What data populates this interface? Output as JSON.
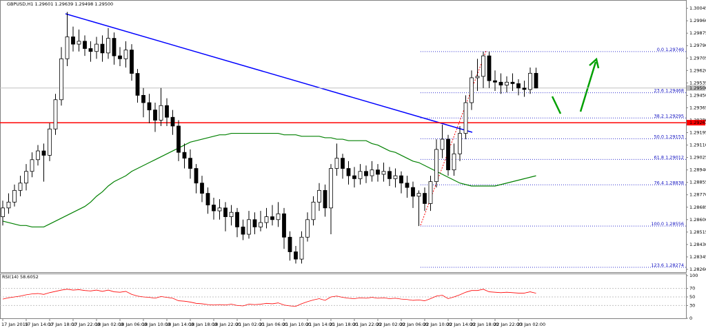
{
  "chart_data": {
    "type": "candlestick",
    "title": "GBPUSD,H1 1.29601 1.29639 1.29498 1.29500",
    "categories": [
      "17 Jan 2019",
      null,
      null,
      null,
      "17 Jan 14:00",
      null,
      null,
      null,
      "17 Jan 18:00",
      null,
      null,
      null,
      "17 Jan 22:00",
      null,
      null,
      null,
      "18 Jan 02:00",
      null,
      null,
      null,
      "18 Jan 06:00",
      null,
      null,
      null,
      "18 Jan 10:00",
      null,
      null,
      null,
      "18 Jan 14:00",
      null,
      null,
      null,
      "18 Jan 18:00",
      null,
      null,
      null,
      "18 Jan 22:00",
      null,
      null,
      null,
      "21 Jan 02:00",
      null,
      null,
      null,
      "21 Jan 06:00",
      null,
      null,
      null,
      "21 Jan 10:00",
      null,
      null,
      null,
      "21 Jan 14:00",
      null,
      null,
      null,
      "21 Jan 18:00",
      null,
      null,
      null,
      "21 Jan 22:00",
      null,
      null,
      null,
      "22 Jan 02:00",
      null,
      null,
      null,
      "22 Jan 06:00",
      null,
      null,
      null,
      "22 Jan 10:00",
      null,
      null,
      null,
      "22 Jan 14:00",
      null,
      null,
      null,
      "22 Jan 18:00",
      null,
      null,
      null,
      "22 Jan 22:00",
      null,
      null,
      null,
      "23 Jan 02:00",
      null,
      null,
      null
    ],
    "open": [
      1.2862,
      1.2868,
      1.2872,
      1.288,
      1.2885,
      1.2893,
      1.2901,
      1.2907,
      1.2904,
      1.2922,
      1.2942,
      1.297,
      1.2985,
      1.298,
      1.2982,
      1.2977,
      1.2975,
      1.298,
      1.2974,
      1.2984,
      1.2972,
      1.297,
      1.2976,
      1.296,
      1.2945,
      1.294,
      1.2935,
      1.2928,
      1.2938,
      1.293,
      1.2924,
      1.2906,
      1.2902,
      1.2895,
      1.2885,
      1.2878,
      1.287,
      1.2866,
      1.2868,
      1.2862,
      1.2865,
      1.2855,
      1.285,
      1.286,
      1.2855,
      1.2858,
      1.2862,
      1.286,
      1.2864,
      1.2848,
      1.2838,
      1.2833,
      1.2848,
      1.286,
      1.2872,
      1.288,
      1.2868,
      1.2895,
      1.2902,
      1.2895,
      1.289,
      1.2888,
      1.2893,
      1.289,
      1.2894,
      1.2891,
      1.2893,
      1.2888,
      1.289,
      1.2885,
      1.2882,
      1.2876,
      1.2878,
      1.2871,
      1.2886,
      1.2908,
      1.2915,
      1.2894,
      1.2905,
      1.2919,
      1.294,
      1.2957,
      1.2958,
      1.2972,
      1.2955,
      1.2954,
      1.2952,
      1.2954,
      1.2953,
      1.295,
      1.2949,
      1.29601
    ],
    "high": [
      1.2873,
      1.2878,
      1.2884,
      1.289,
      1.2898,
      1.2906,
      1.2911,
      1.2912,
      1.2926,
      1.2946,
      1.2978,
      1.3002,
      1.2992,
      1.299,
      1.2986,
      1.2982,
      1.2985,
      1.2986,
      1.2991,
      1.2988,
      1.2978,
      1.2982,
      1.298,
      1.2963,
      1.295,
      1.2946,
      1.294,
      1.295,
      1.2943,
      1.2935,
      1.2928,
      1.2912,
      1.2908,
      1.2898,
      1.289,
      1.2882,
      1.2875,
      1.2874,
      1.2872,
      1.287,
      1.2868,
      1.286,
      1.2866,
      1.2865,
      1.2866,
      1.2868,
      1.287,
      1.2872,
      1.2868,
      1.2852,
      1.2842,
      1.2852,
      1.2865,
      1.2876,
      1.2885,
      1.2884,
      1.2898,
      1.2912,
      1.2905,
      1.29,
      1.2896,
      1.2898,
      1.2897,
      1.29,
      1.2898,
      1.2899,
      1.2896,
      1.2895,
      1.2893,
      1.289,
      1.2886,
      1.288,
      1.2882,
      1.289,
      1.2915,
      1.2925,
      1.2918,
      1.2912,
      1.2924,
      1.2945,
      1.2962,
      1.297,
      1.29749,
      1.2975,
      1.2962,
      1.296,
      1.2958,
      1.296,
      1.2956,
      1.2955,
      1.2964,
      1.29639
    ],
    "low": [
      1.2856,
      1.2864,
      1.2869,
      1.2876,
      1.288,
      1.2889,
      1.2897,
      1.2886,
      1.29,
      1.2918,
      1.2938,
      1.2965,
      1.2975,
      1.2975,
      1.2972,
      1.2968,
      1.297,
      1.2968,
      1.297,
      1.2966,
      1.2965,
      1.2964,
      1.2955,
      1.294,
      1.293,
      1.2926,
      1.292,
      1.2924,
      1.2924,
      1.2918,
      1.29,
      1.2895,
      1.2888,
      1.2878,
      1.2872,
      1.2864,
      1.286,
      1.286,
      1.2852,
      1.2856,
      1.2848,
      1.2846,
      1.2847,
      1.285,
      1.2852,
      1.2854,
      1.2856,
      1.2855,
      1.284,
      1.2832,
      1.283,
      1.283,
      1.2845,
      1.2856,
      1.2866,
      1.2862,
      1.285,
      1.289,
      1.2888,
      1.2884,
      1.2882,
      1.2884,
      1.2885,
      1.2886,
      1.2886,
      1.2886,
      1.2883,
      1.2882,
      1.2878,
      1.2875,
      1.2868,
      1.28556,
      1.2866,
      1.2866,
      1.2882,
      1.2902,
      1.289,
      1.289,
      1.29,
      1.2915,
      1.2935,
      1.2948,
      1.295,
      1.295,
      1.2948,
      1.2946,
      1.2947,
      1.2948,
      1.2945,
      1.2944,
      1.2946,
      1.29498
    ],
    "close": [
      1.2868,
      1.2872,
      1.288,
      1.2885,
      1.2893,
      1.2901,
      1.2907,
      1.2904,
      1.2922,
      1.2942,
      1.297,
      1.2985,
      1.298,
      1.2982,
      1.2977,
      1.2975,
      1.298,
      1.2974,
      1.2984,
      1.2972,
      1.297,
      1.2976,
      1.296,
      1.2945,
      1.294,
      1.2935,
      1.2928,
      1.2938,
      1.293,
      1.2924,
      1.2906,
      1.2902,
      1.2895,
      1.2885,
      1.2878,
      1.287,
      1.2866,
      1.2868,
      1.2862,
      1.2865,
      1.2855,
      1.285,
      1.286,
      1.2855,
      1.2858,
      1.2862,
      1.286,
      1.2864,
      1.2848,
      1.2838,
      1.2833,
      1.2848,
      1.286,
      1.2872,
      1.288,
      1.2868,
      1.2895,
      1.2902,
      1.2895,
      1.289,
      1.2888,
      1.2893,
      1.289,
      1.2894,
      1.2891,
      1.2893,
      1.2888,
      1.289,
      1.2885,
      1.2882,
      1.2876,
      1.2878,
      1.2871,
      1.2886,
      1.2908,
      1.2915,
      1.2894,
      1.2905,
      1.2919,
      1.294,
      1.2957,
      1.2958,
      1.2972,
      1.2955,
      1.2954,
      1.2952,
      1.2954,
      1.2953,
      1.295,
      1.2949,
      1.29601,
      1.295
    ],
    "ma": {
      "color": "#008000",
      "values": [
        1.2859,
        1.2858,
        1.2857,
        1.2856,
        1.2856,
        1.2855,
        1.2855,
        1.2855,
        1.2857,
        1.2859,
        1.2861,
        1.2863,
        1.2865,
        1.2867,
        1.2869,
        1.2872,
        1.2876,
        1.2879,
        1.2883,
        1.2886,
        1.2888,
        1.289,
        1.2893,
        1.2895,
        1.2897,
        1.2899,
        1.2901,
        1.2903,
        1.2905,
        1.2907,
        1.2909,
        1.2911,
        1.2913,
        1.2914,
        1.2915,
        1.2916,
        1.2917,
        1.2918,
        1.2918,
        1.2919,
        1.2919,
        1.2919,
        1.2919,
        1.2919,
        1.2919,
        1.2919,
        1.2919,
        1.2919,
        1.2918,
        1.2918,
        1.2918,
        1.2917,
        1.2917,
        1.2917,
        1.2917,
        1.2916,
        1.2916,
        1.2915,
        1.2915,
        1.2914,
        1.2914,
        1.2914,
        1.2914,
        1.2912,
        1.2911,
        1.2909,
        1.2907,
        1.2906,
        1.2904,
        1.2902,
        1.29,
        1.2899,
        1.2897,
        1.2895,
        1.2893,
        1.2891,
        1.2889,
        1.2887,
        1.2885,
        1.2884,
        1.2883,
        1.2883,
        1.2883,
        1.2883,
        1.2883,
        1.2884,
        1.2885,
        1.2886,
        1.2887,
        1.2888,
        1.2889,
        1.289
      ]
    },
    "ylim": [
      1.28241,
      1.30102
    ],
    "yticks": [
      1.30045,
      {
        "value": 1.2996,
        "label": "1.29960"
      },
      1.29875,
      {
        "value": 1.2979,
        "label": "1.29790"
      },
      1.29705,
      {
        "value": 1.2962,
        "label": "1.29620"
      },
      1.29535,
      {
        "value": 1.2945,
        "label": "1.29450"
      },
      1.29365,
      {
        "value": 1.2928,
        "label": "1.29280"
      },
      1.29195,
      {
        "value": 1.2911,
        "label": "1.29110"
      },
      1.29025,
      {
        "value": 1.2894,
        "label": "1.28940"
      },
      1.28855,
      {
        "value": 1.2877,
        "label": "1.28770"
      },
      1.28685,
      {
        "value": 1.286,
        "label": "1.28600"
      },
      1.28515,
      {
        "value": 1.2843,
        "label": "1.28430"
      },
      1.28345,
      {
        "value": 1.2826,
        "label": "1.28260"
      }
    ],
    "price_lines": [
      {
        "value": 1.295,
        "label": "1.29500",
        "color": "#c0c0c0"
      },
      {
        "value": 1.29263,
        "label": "1.29263",
        "color": "#ff0000"
      }
    ],
    "fib_levels": [
      {
        "level": "0.0",
        "value": 1.29749
      },
      {
        "level": "23.6",
        "value": 1.29468
      },
      {
        "level": "38.2",
        "value": 1.29295
      },
      {
        "level": "50.0",
        "value": 1.29153
      },
      {
        "level": "61.8",
        "value": 1.29012
      },
      {
        "level": "76.4",
        "value": 1.28838
      },
      {
        "level": "100.0",
        "value": 1.28556
      },
      {
        "level": "123.6",
        "value": 1.28274
      }
    ],
    "indicator": {
      "title": "RSI(14) 58.6052",
      "color": "#ff0000",
      "ylim": [
        0,
        100
      ],
      "yticks": [
        0,
        30,
        50,
        70,
        100
      ],
      "values": [
        45,
        48,
        50,
        52,
        55,
        57,
        58,
        56,
        60,
        63,
        66,
        68,
        66,
        67,
        65,
        64,
        66,
        63,
        66,
        62,
        61,
        63,
        56,
        52,
        50,
        49,
        47,
        51,
        49,
        47,
        41,
        40,
        38,
        35,
        34,
        32,
        31,
        32,
        31,
        33,
        30,
        29,
        33,
        32,
        33,
        35,
        34,
        36,
        31,
        29,
        28,
        34,
        39,
        43,
        46,
        42,
        50,
        52,
        49,
        47,
        46,
        48,
        47,
        49,
        47,
        48,
        46,
        47,
        45,
        44,
        42,
        43,
        41,
        46,
        52,
        54,
        46,
        50,
        55,
        61,
        65,
        65,
        68,
        62,
        61,
        60,
        61,
        60,
        59,
        59,
        62,
        58.6052
      ]
    }
  }
}
